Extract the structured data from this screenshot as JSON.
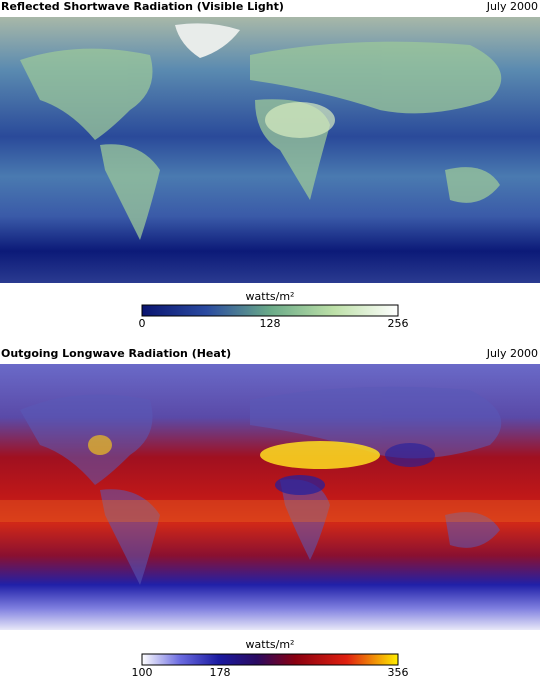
{
  "panels": [
    {
      "title": "Reflected Shortwave Radiation (Visible Light)",
      "date": "July 2000",
      "colorbar": {
        "label": "watts/m²",
        "ticks": [
          0,
          128,
          256
        ]
      }
    },
    {
      "title": "Outgoing Longwave Radiation (Heat)",
      "date": "July 2000",
      "colorbar": {
        "label": "watts/m²",
        "ticks": [
          100,
          178,
          356
        ]
      }
    }
  ]
}
